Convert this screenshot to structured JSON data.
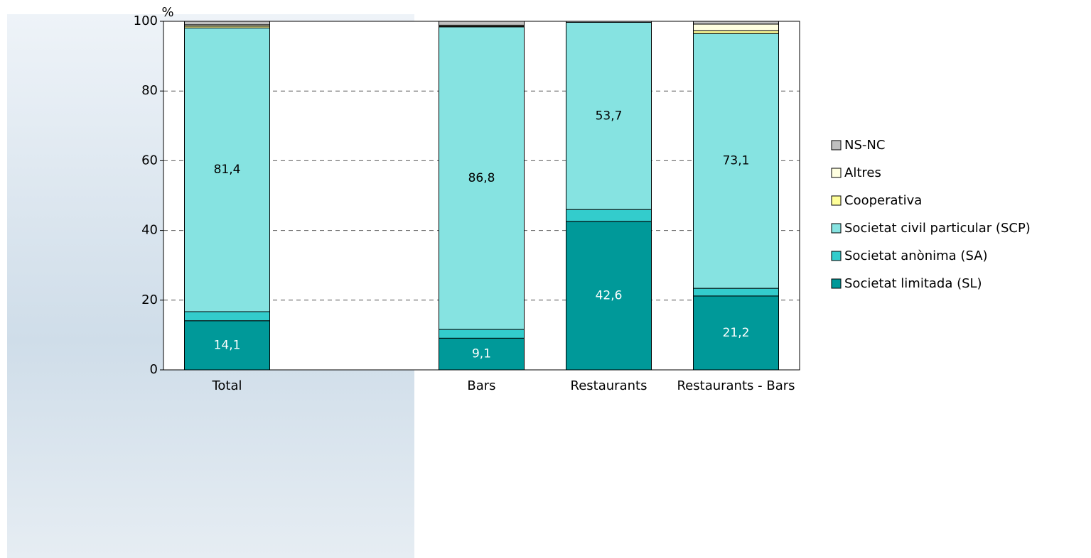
{
  "chart_data": {
    "type": "stacked_bar",
    "ylabel": "%",
    "categories": [
      "Total",
      null,
      "Bars",
      "Restaurants",
      "Restaurants - Bars"
    ],
    "series": [
      {
        "name": "Societat limitada (SL)",
        "color": "#009999",
        "values": [
          14.1,
          null,
          9.1,
          42.6,
          21.2
        ],
        "value_labels": [
          "14,1",
          null,
          "9,1",
          "42,6",
          "21,2"
        ]
      },
      {
        "name": "Societat anònima (SA)",
        "color": "#33cccc",
        "values": [
          2.6,
          null,
          2.5,
          3.4,
          2.2
        ]
      },
      {
        "name": "Societat civil particular (SCP)",
        "color": "#86e3e1",
        "values": [
          81.4,
          null,
          86.8,
          53.7,
          73.1
        ],
        "value_labels": [
          "81,4",
          null,
          "86,8",
          "53,7",
          "73,1"
        ]
      },
      {
        "name": "Cooperativa",
        "color": "#ffff99",
        "values": [
          0.5,
          null,
          0.2,
          0,
          0.8
        ]
      },
      {
        "name": "Altres",
        "color": "#ffffe0",
        "values": [
          0.4,
          null,
          0.3,
          0,
          1.9
        ]
      },
      {
        "name": "NS-NC",
        "color": "#c0c0c0",
        "values": [
          1.0,
          null,
          1.1,
          0.3,
          0.8
        ]
      }
    ],
    "ylim": [
      0,
      100
    ],
    "yticks": [
      0,
      20,
      40,
      60,
      80,
      100
    ],
    "grid": true,
    "legend": "right"
  }
}
